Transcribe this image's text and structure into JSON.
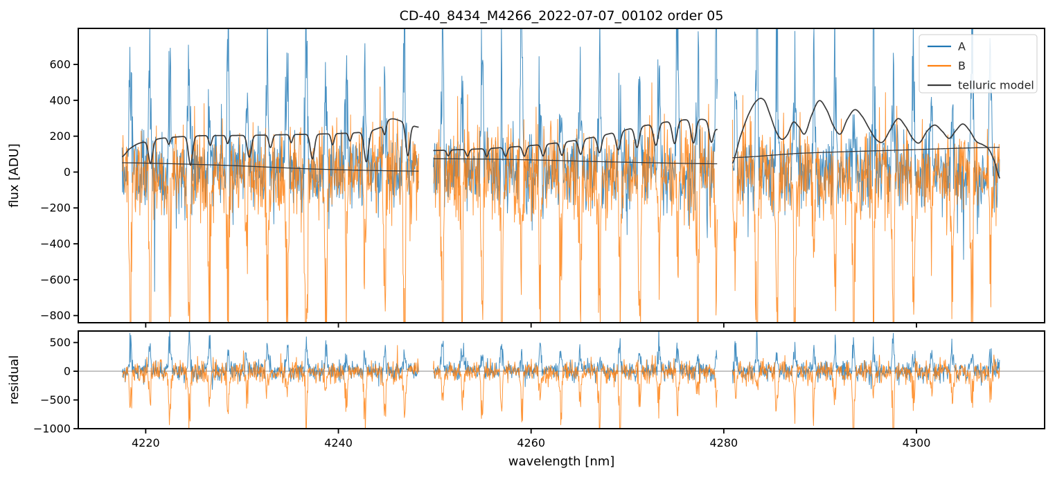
{
  "seed": 11,
  "colors": {
    "A": "#1f77b4",
    "B": "#ff7f0e",
    "telluric": "#3a3a3a",
    "zero_line": "#8a8a8a",
    "spine": "#000000",
    "background": "#ffffff",
    "legend_border": "#cccccc"
  },
  "chart_data": {
    "type": "line",
    "title": "CD-40_8434_M4266_2022-07-07_00102  order 05",
    "xlabel": "wavelength [nm]",
    "xlim": [
      4213.0,
      4313.3
    ],
    "x_ticks": [
      4220,
      4240,
      4260,
      4280,
      4300
    ],
    "grid": false,
    "panels": [
      {
        "id": "flux",
        "ylabel": "flux [ADU]",
        "ylim": [
          -840,
          801
        ],
        "y_ticks": [
          600,
          400,
          200,
          0,
          -200,
          -400,
          -600,
          -800
        ]
      },
      {
        "id": "residual",
        "ylabel": "residual",
        "ylim": [
          -1000,
          700
        ],
        "y_ticks": [
          500,
          0,
          -500,
          -1000
        ],
        "zero_line": 0
      }
    ],
    "segments_nm": [
      [
        4217.55,
        4248.35
      ],
      [
        4249.85,
        4279.35
      ],
      [
        4280.9,
        4308.65
      ]
    ],
    "sample_step_nm": 0.045,
    "spike_comb": {
      "start": 4218.4,
      "period": 2.03,
      "jitter": 0.12,
      "width_nm": 0.16
    },
    "noise_series": [
      {
        "name": "A",
        "color_key": "A",
        "panels": {
          "flux": {
            "noise_sigma": 110,
            "spike_dir": 1,
            "spike_amp": [
              350,
              950
            ],
            "counter_prob": 0.006,
            "counter_amp": [
              150,
              420
            ]
          },
          "residual": {
            "noise_sigma": 80,
            "spike_dir": 1,
            "spike_amp": [
              250,
              620
            ],
            "counter_prob": 0.005,
            "counter_amp": [
              100,
              300
            ]
          }
        }
      },
      {
        "name": "B",
        "color_key": "B",
        "panels": {
          "flux": {
            "noise_sigma": 130,
            "spike_dir": -1,
            "spike_amp": [
              420,
              1100
            ],
            "counter_prob": 0.008,
            "counter_amp": [
              200,
              480
            ]
          },
          "residual": {
            "noise_sigma": 95,
            "spike_dir": -1,
            "spike_amp": [
              350,
              950
            ],
            "counter_prob": 0.006,
            "counter_amp": [
              150,
              350
            ]
          }
        }
      }
    ],
    "telluric_model": {
      "label": "telluric model",
      "color_key": "telluric",
      "absorption_curve": {
        "segments": [
          {
            "continuum": [
              [
                4217.55,
                85
              ],
              [
                4218.3,
                128
              ],
              [
                4219.2,
                158
              ],
              [
                4220.2,
                172
              ],
              [
                4221.6,
                188
              ],
              [
                4223.5,
                197
              ],
              [
                4226,
                203
              ],
              [
                4229,
                204
              ],
              [
                4232,
                206
              ],
              [
                4235,
                209
              ],
              [
                4238,
                212
              ],
              [
                4241,
                217
              ],
              [
                4243,
                226
              ],
              [
                4244.5,
                252
              ],
              [
                4245.4,
                295
              ],
              [
                4246.4,
                286
              ],
              [
                4247.6,
                262
              ],
              [
                4248.35,
                250
              ]
            ],
            "dips": [
              [
                4220.5,
                128,
                0.3
              ],
              [
                4222.4,
                38,
                0.2
              ],
              [
                4224.65,
                162,
                0.3
              ],
              [
                4226.7,
                55,
                0.22
              ],
              [
                4228.5,
                45,
                0.2
              ],
              [
                4230.75,
                122,
                0.3
              ],
              [
                4232.95,
                70,
                0.25
              ],
              [
                4235.1,
                45,
                0.2
              ],
              [
                4237.3,
                138,
                0.3
              ],
              [
                4239.4,
                62,
                0.22
              ],
              [
                4241.2,
                45,
                0.2
              ],
              [
                4242.9,
                168,
                0.32
              ],
              [
                4244.8,
                58,
                0.2
              ],
              [
                4247.2,
                178,
                0.3
              ]
            ]
          },
          {
            "continuum": [
              [
                4249.85,
                120
              ],
              [
                4252,
                124
              ],
              [
                4255,
                130
              ],
              [
                4258,
                140
              ],
              [
                4261,
                153
              ],
              [
                4264,
                172
              ],
              [
                4267,
                200
              ],
              [
                4270,
                238
              ],
              [
                4272.5,
                266
              ],
              [
                4275,
                286
              ],
              [
                4277,
                294
              ],
              [
                4278.2,
                288
              ],
              [
                4279.35,
                238
              ]
            ],
            "dips": [
              [
                4251.4,
                32,
                0.22
              ],
              [
                4253.4,
                38,
                0.23
              ],
              [
                4255.4,
                44,
                0.24
              ],
              [
                4257.35,
                50,
                0.25
              ],
              [
                4259.3,
                57,
                0.26
              ],
              [
                4261.25,
                64,
                0.28
              ],
              [
                4263.2,
                73,
                0.28
              ],
              [
                4265.15,
                83,
                0.3
              ],
              [
                4267.1,
                93,
                0.3
              ],
              [
                4269.05,
                103,
                0.32
              ],
              [
                4271,
                113,
                0.32
              ],
              [
                4272.95,
                121,
                0.34
              ],
              [
                4274.9,
                127,
                0.34
              ],
              [
                4276.85,
                132,
                0.34
              ],
              [
                4278.7,
                100,
                0.3
              ]
            ]
          },
          {
            "continuum": [
              [
                4280.9,
                48
              ],
              [
                4281.7,
                195
              ],
              [
                4282.6,
                325
              ],
              [
                4283.5,
                402
              ],
              [
                4284.2,
                400
              ],
              [
                4284.8,
                320
              ],
              [
                4285.4,
                230
              ],
              [
                4286.0,
                183
              ],
              [
                4286.6,
                208
              ],
              [
                4287.2,
                278
              ],
              [
                4287.8,
                252
              ],
              [
                4288.4,
                213
              ],
              [
                4289.1,
                315
              ],
              [
                4289.9,
                398
              ],
              [
                4290.7,
                345
              ],
              [
                4291.4,
                255
              ],
              [
                4292.1,
                212
              ],
              [
                4292.8,
                292
              ],
              [
                4293.6,
                348
              ],
              [
                4294.4,
                308
              ],
              [
                4295.1,
                242
              ],
              [
                4295.8,
                183
              ],
              [
                4296.5,
                168
              ],
              [
                4297.3,
                238
              ],
              [
                4298.1,
                298
              ],
              [
                4298.9,
                252
              ],
              [
                4299.6,
                188
              ],
              [
                4300.3,
                163
              ],
              [
                4301.1,
                228
              ],
              [
                4301.9,
                262
              ],
              [
                4302.7,
                226
              ],
              [
                4303.4,
                188
              ],
              [
                4304.1,
                232
              ],
              [
                4304.8,
                268
              ],
              [
                4305.5,
                232
              ],
              [
                4306.2,
                172
              ],
              [
                4306.9,
                152
              ],
              [
                4307.5,
                128
              ],
              [
                4308.1,
                58
              ],
              [
                4308.65,
                -35
              ]
            ],
            "dips": []
          }
        ]
      },
      "baseline_curve": {
        "segments": [
          [
            [
              4217.55,
              52
            ],
            [
              4228,
              38
            ],
            [
              4238,
              16
            ],
            [
              4248.35,
              5
            ]
          ],
          [
            [
              4249.85,
              74
            ],
            [
              4258,
              70
            ],
            [
              4268,
              57
            ],
            [
              4279.35,
              46
            ]
          ],
          [
            [
              4280.9,
              80
            ],
            [
              4288,
              105
            ],
            [
              4298,
              122
            ],
            [
              4308.65,
              138
            ]
          ]
        ]
      }
    },
    "legend": {
      "position": "upper right",
      "entries": [
        {
          "label": "A",
          "color_key": "A"
        },
        {
          "label": "B",
          "color_key": "B"
        },
        {
          "label": "telluric model",
          "color_key": "telluric"
        }
      ]
    }
  }
}
